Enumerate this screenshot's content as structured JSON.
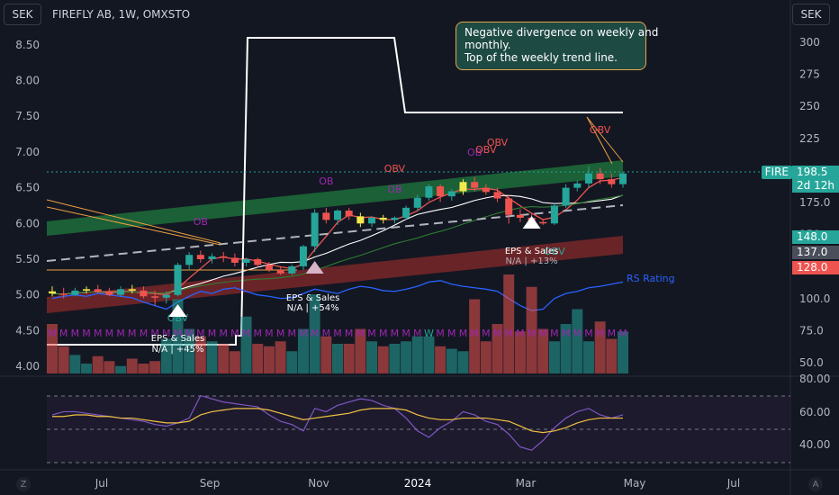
{
  "header": {
    "currency_left": "SEK",
    "currency_right": "SEK",
    "symbol_title": "FIREFLY AB, 1W, OMXSTO"
  },
  "annotation": {
    "lines": [
      "Negative divergence on weekly and",
      "monthly.",
      "Top of the weekly trend line."
    ]
  },
  "price_tags": {
    "symbol": "FIRE",
    "last": "198.5",
    "countdown": "2d 12h",
    "upper": "148.0",
    "mid": "137.0",
    "lower": "128.0"
  },
  "labels": {
    "eps1": {
      "title": "EPS & Sales",
      "value": "N/A | +45%"
    },
    "eps2": {
      "title": "EPS & Sales",
      "value": "N/A | +54%"
    },
    "eps3": {
      "title": "EPS & Sales",
      "value": "N/A | +13%"
    },
    "ob": "OB",
    "obv": "OBV",
    "rs_rating": "RS Rating",
    "m": "M",
    "w": "W"
  },
  "colors": {
    "bull": "#26a69a",
    "bear": "#ef5350",
    "yellow": "#f2e94e",
    "band_green": "#1f7a3e",
    "band_red": "#8e2b2b",
    "purple": "#9c27b0"
  },
  "corners": {
    "left": "Z",
    "right": "A"
  },
  "chart_data": {
    "type": "candlestick",
    "title": "FIREFLY AB, 1W, OMXSTO",
    "x_ticks": [
      "Jul",
      "Sep",
      "Nov",
      "2024",
      "Mar",
      "May",
      "Jul"
    ],
    "y_left_ticks": [
      "8.50",
      "8.00",
      "7.50",
      "7.00",
      "6.50",
      "6.00",
      "5.50",
      "5.00",
      "4.50",
      "4.00"
    ],
    "y_right_ticks": [
      "300",
      "275",
      "250",
      "225",
      "200",
      "175.0",
      "150",
      "125.0",
      "100.0",
      "75.0",
      "50.0"
    ],
    "osc_ticks": [
      "80.00",
      "60.00",
      "40.00"
    ],
    "ylim_price": [
      3.9,
      8.75
    ],
    "series": [
      {
        "name": "candles",
        "ohlc": [
          [
            5.05,
            5.12,
            4.98,
            5.02
          ],
          [
            5.02,
            5.1,
            4.95,
            5.0
          ],
          [
            5.0,
            5.1,
            4.98,
            5.06
          ],
          [
            5.06,
            5.12,
            5.02,
            5.08
          ],
          [
            5.08,
            5.14,
            5.02,
            5.04
          ],
          [
            5.04,
            5.1,
            4.98,
            5.0
          ],
          [
            5.0,
            5.12,
            4.98,
            5.08
          ],
          [
            5.08,
            5.14,
            5.02,
            5.06
          ],
          [
            5.06,
            5.12,
            4.95,
            4.98
          ],
          [
            4.98,
            5.06,
            4.85,
            4.96
          ],
          [
            4.96,
            5.05,
            4.88,
            5.0
          ],
          [
            5.0,
            5.45,
            4.98,
            5.42
          ],
          [
            5.42,
            5.6,
            5.36,
            5.56
          ],
          [
            5.56,
            5.62,
            5.45,
            5.5
          ],
          [
            5.5,
            5.58,
            5.44,
            5.54
          ],
          [
            5.54,
            5.6,
            5.46,
            5.52
          ],
          [
            5.52,
            5.58,
            5.4,
            5.45
          ],
          [
            5.45,
            5.52,
            5.4,
            5.5
          ],
          [
            5.5,
            5.52,
            5.38,
            5.42
          ],
          [
            5.42,
            5.46,
            5.32,
            5.35
          ],
          [
            5.35,
            5.4,
            5.28,
            5.3
          ],
          [
            5.3,
            5.42,
            5.28,
            5.4
          ],
          [
            5.4,
            5.7,
            5.35,
            5.68
          ],
          [
            5.68,
            6.2,
            5.6,
            6.15
          ],
          [
            6.15,
            6.22,
            6.0,
            6.05
          ],
          [
            6.05,
            6.2,
            5.98,
            6.18
          ],
          [
            6.18,
            6.22,
            6.05,
            6.1
          ],
          [
            6.1,
            6.15,
            5.95,
            6.0
          ],
          [
            6.0,
            6.1,
            5.95,
            6.08
          ],
          [
            6.08,
            6.12,
            6.0,
            6.05
          ],
          [
            6.05,
            6.1,
            6.0,
            6.08
          ],
          [
            6.08,
            6.25,
            6.05,
            6.22
          ],
          [
            6.22,
            6.4,
            6.18,
            6.36
          ],
          [
            6.36,
            6.55,
            6.32,
            6.52
          ],
          [
            6.52,
            6.55,
            6.3,
            6.38
          ],
          [
            6.38,
            6.48,
            6.32,
            6.45
          ],
          [
            6.45,
            6.62,
            6.4,
            6.58
          ],
          [
            6.58,
            6.65,
            6.45,
            6.5
          ],
          [
            6.5,
            6.55,
            6.4,
            6.44
          ],
          [
            6.44,
            6.5,
            6.3,
            6.35
          ],
          [
            6.35,
            6.4,
            6.0,
            6.12
          ],
          [
            6.12,
            6.2,
            6.02,
            6.08
          ],
          [
            6.08,
            6.15,
            5.98,
            6.02
          ],
          [
            6.02,
            6.05,
            5.98,
            6.0
          ],
          [
            6.0,
            6.28,
            5.98,
            6.25
          ],
          [
            6.25,
            6.55,
            6.22,
            6.5
          ],
          [
            6.5,
            6.6,
            6.45,
            6.56
          ],
          [
            6.56,
            6.8,
            6.5,
            6.7
          ],
          [
            6.7,
            6.78,
            6.55,
            6.62
          ],
          [
            6.62,
            6.7,
            6.5,
            6.55
          ],
          [
            6.55,
            6.72,
            6.5,
            6.7
          ]
        ]
      },
      {
        "name": "RS Rating",
        "values": [
          4.95,
          4.98,
          5.0,
          4.98,
          5.02,
          5.0,
          4.98,
          4.96,
          4.9,
          4.85,
          4.8,
          4.9,
          4.98,
          5.05,
          5.02,
          5.08,
          5.1,
          5.05,
          5.0,
          4.98,
          4.95,
          4.96,
          5.02,
          5.08,
          5.05,
          5.02,
          5.08,
          5.12,
          5.1,
          5.06,
          5.05,
          5.08,
          5.12,
          5.18,
          5.2,
          5.15,
          5.12,
          5.1,
          5.08,
          5.05,
          4.95,
          4.85,
          4.78,
          4.8,
          4.95,
          5.02,
          5.05,
          5.1,
          5.12,
          5.15,
          5.18
        ]
      }
    ],
    "volume": [
      40,
      22,
      15,
      8,
      14,
      10,
      6,
      12,
      8,
      10,
      28,
      60,
      36,
      30,
      26,
      24,
      18,
      46,
      24,
      22,
      26,
      18,
      36,
      64,
      30,
      24,
      24,
      36,
      26,
      22,
      24,
      26,
      30,
      30,
      22,
      20,
      18,
      60,
      26,
      40,
      80,
      34,
      70,
      36,
      26,
      40,
      52,
      26,
      42,
      28,
      34
    ],
    "oscillator": [
      62,
      64,
      64,
      63,
      62,
      61,
      60,
      59,
      58,
      56,
      55,
      57,
      60,
      74,
      72,
      70,
      69,
      68,
      67,
      62,
      58,
      56,
      52,
      66,
      64,
      68,
      70,
      72,
      71,
      68,
      66,
      60,
      52,
      48,
      54,
      58,
      64,
      62,
      58,
      56,
      50,
      42,
      40,
      46,
      54,
      60,
      64,
      66,
      62,
      60,
      62
    ],
    "oscillator_signal": [
      61,
      61,
      62,
      62,
      61,
      61,
      60,
      60,
      59,
      58,
      57,
      57,
      58,
      62,
      64,
      65,
      66,
      66,
      66,
      65,
      63,
      61,
      59,
      60,
      61,
      62,
      63,
      65,
      66,
      66,
      66,
      65,
      62,
      60,
      59,
      59,
      60,
      60,
      60,
      59,
      58,
      55,
      52,
      51,
      52,
      54,
      57,
      59,
      60,
      60,
      60
    ]
  }
}
